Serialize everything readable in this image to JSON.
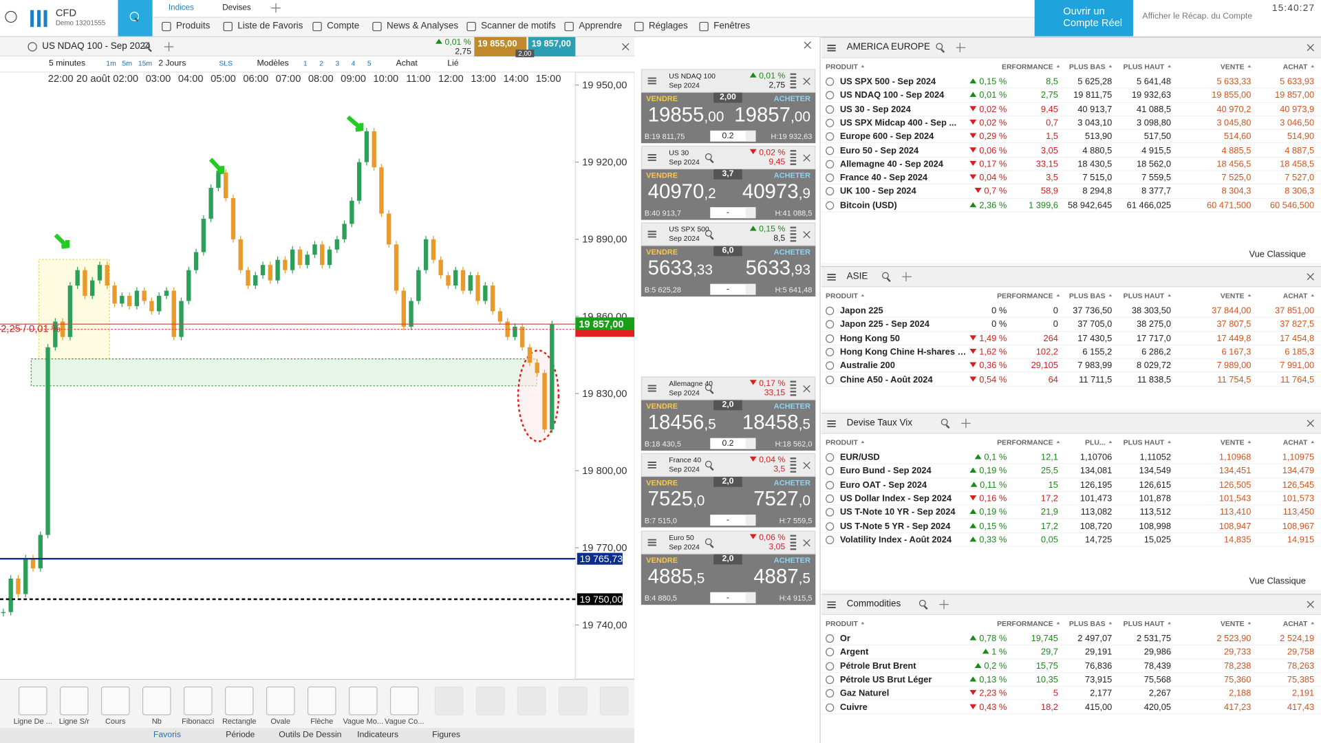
{
  "header": {
    "brand": "CFD",
    "account": "Demo 13201555",
    "tabs": [
      "Indices",
      "Devises"
    ],
    "menu": [
      "Produits",
      "Liste de Favoris",
      "Compte",
      "News & Analyses",
      "Scanner de motifs",
      "Apprendre",
      "Réglages",
      "Fenêtres"
    ],
    "open_account": "Ouvrir un Compte Réel",
    "summary": "Afficher le Récap. du Compte",
    "clock": "15:40:27"
  },
  "chart_panel": {
    "instrument": "US NDAQ 100 - Sep 2024",
    "change": "0,01 %",
    "points": "2,75",
    "sell": "19 855,00",
    "buy": "19 857,00",
    "spread": "2,00",
    "toolbar": [
      "5 minutes",
      "1m",
      "5m",
      "15m",
      "2 Jours",
      "SLS",
      "Modèles",
      "1",
      "2",
      "3",
      "4",
      "5",
      "Achat",
      "Lié"
    ],
    "tools": [
      "Ligne De ...",
      "Ligne S/r",
      "Cours",
      "Nb",
      "Fibonacci",
      "Rectangle",
      "Ovale",
      "Flèche",
      "Vague Mo...",
      "Vague Co..."
    ],
    "tabs": [
      "Favoris",
      "Période",
      "Outils De Dessin",
      "Indicateurs",
      "Figures"
    ],
    "spread_label": "2,25 / 0,01 %"
  },
  "chart_data": {
    "type": "candlestick",
    "time_labels": [
      "22:00",
      "20 août",
      "02:00",
      "03:00",
      "04:00",
      "05:00",
      "06:00",
      "07:00",
      "08:00",
      "09:00",
      "10:00",
      "11:00",
      "12:00",
      "13:00",
      "14:00",
      "15:00"
    ],
    "values": [
      19745,
      19758,
      19752,
      19766,
      19762,
      19775,
      19848,
      19858,
      19852,
      19872,
      19878,
      19868,
      19874,
      19880,
      19872,
      19865,
      19868,
      19864,
      19870,
      19866,
      19862,
      19868,
      19870,
      19852,
      19866,
      19878,
      19885,
      19898,
      19910,
      19916,
      19906,
      19890,
      19878,
      19872,
      19876,
      19880,
      19874,
      19882,
      19878,
      19886,
      19880,
      19884,
      19888,
      19880,
      19886,
      19890,
      19896,
      19905,
      19920,
      19932,
      19918,
      19900,
      19888,
      19870,
      19856,
      19866,
      19878,
      19890,
      19882,
      19876,
      19872,
      19878,
      19870,
      19876,
      19866,
      19872,
      19862,
      19858,
      19852,
      19856,
      19848,
      19842,
      19838,
      19816,
      19857
    ],
    "colors": {
      "up": "#2ca05a",
      "down": "#e89a2c"
    },
    "ylim": [
      19719.3,
      19950.3
    ],
    "yticks": [
      {
        "value": 19950,
        "label": "19 950,00"
      },
      {
        "value": 19920,
        "label": "19 920,00"
      },
      {
        "value": 19890,
        "label": "19 890,00"
      },
      {
        "value": 19860,
        "label": "19 860,00"
      },
      {
        "value": 19830,
        "label": "19 830,00"
      },
      {
        "value": 19800,
        "label": "19 800,00"
      },
      {
        "value": 19770,
        "label": "19 770,00"
      },
      {
        "value": 19740,
        "label": "19 740,00"
      }
    ],
    "bid": 19855,
    "current": {
      "value": 19857,
      "label": "19 857,00"
    },
    "levels": [
      {
        "value": 19765.73,
        "label": "19 765,73",
        "color": "#0b2d8f"
      },
      {
        "value": 19750,
        "label": "19 750,00",
        "color": "#000000"
      }
    ]
  },
  "quotes": {
    "sell_label": "VENDRE",
    "buy_label": "ACHETER",
    "tiles": [
      {
        "name": "US NDAQ 100",
        "expiry": "Sep 2024",
        "change": "0,01 %",
        "dir": "up",
        "points": "2,75",
        "spread": "2,00",
        "sell": [
          "19855",
          ",00"
        ],
        "buy": [
          "19857",
          ",00"
        ],
        "low": "B:19 811,75",
        "qty": "0.2",
        "high": "H:19 932,63"
      },
      {
        "name": "US 30",
        "expiry": "Sep 2024",
        "change": "0,02 %",
        "dir": "down",
        "points": "9,45",
        "spread": "3,7",
        "sell": [
          "40970",
          ",2"
        ],
        "buy": [
          "40973",
          ",9"
        ],
        "low": "B:40 913,7",
        "qty": "-",
        "high": "H:41 088,5"
      },
      {
        "name": "US SPX 500",
        "expiry": "Sep 2024",
        "change": "0,15 %",
        "dir": "up",
        "points": "8,5",
        "spread": "6,0",
        "sell": [
          "5633",
          ",33"
        ],
        "buy": [
          "5633",
          ",93"
        ],
        "low": "B:5 625,28",
        "qty": "-",
        "high": "H:5 641,48"
      },
      {
        "name": "Allemagne 40",
        "expiry": "Sep 2024",
        "change": "0,17 %",
        "dir": "down",
        "points": "33,15",
        "spread": "2,0",
        "sell": [
          "18456",
          ",5"
        ],
        "buy": [
          "18458",
          ",5"
        ],
        "low": "B:18 430,5",
        "qty": "0.2",
        "high": "H:18 562,0"
      },
      {
        "name": "France 40",
        "expiry": "Sep 2024",
        "change": "0,04 %",
        "dir": "down",
        "points": "3,5",
        "spread": "2,0",
        "sell": [
          "7525",
          ",0"
        ],
        "buy": [
          "7527",
          ",0"
        ],
        "low": "B:7 515,0",
        "qty": "-",
        "high": "H:7 559,5"
      },
      {
        "name": "Euro 50",
        "expiry": "Sep 2024",
        "change": "0,06 %",
        "dir": "down",
        "points": "3,05",
        "spread": "2,0",
        "sell": [
          "4885",
          ",5"
        ],
        "buy": [
          "4887",
          ",5"
        ],
        "low": "B:4 880,5",
        "qty": "-",
        "high": "H:4 915,5"
      }
    ]
  },
  "panels": [
    {
      "title": "AMERICA EUROPE",
      "columns": [
        "PRODUIT",
        "ERFORMANCE",
        "PLUS BAS",
        "PLUS HAUT",
        "VENTE",
        "ACHAT"
      ],
      "footer": "Vue Classique",
      "dirs": [
        "up",
        "up",
        "down",
        "down",
        "down",
        "down",
        "down",
        "down",
        "down",
        "up"
      ],
      "rows": [
        [
          "US SPX 500 - Sep 2024",
          "0,15 %",
          "8,5",
          "5 625,28",
          "5 641,48",
          "5 633,33",
          "5 633,93"
        ],
        [
          "US NDAQ 100 - Sep 2024",
          "0,01 %",
          "2,75",
          "19 811,75",
          "19 932,63",
          "19 855,00",
          "19 857,00"
        ],
        [
          "US 30 - Sep 2024",
          "0,02 %",
          "9,45",
          "40 913,7",
          "41 088,5",
          "40 970,2",
          "40 973,9"
        ],
        [
          "US SPX Midcap 400 - Sep ...",
          "0,02 %",
          "0,7",
          "3 043,10",
          "3 098,80",
          "3 045,80",
          "3 046,50"
        ],
        [
          "Europe 600 - Sep 2024",
          "0,29 %",
          "1,5",
          "513,90",
          "517,50",
          "514,60",
          "514,90"
        ],
        [
          "Euro 50 - Sep 2024",
          "0,06 %",
          "3,05",
          "4 880,5",
          "4 915,5",
          "4 885,5",
          "4 887,5"
        ],
        [
          "Allemagne 40 - Sep 2024",
          "0,17 %",
          "33,15",
          "18 430,5",
          "18 562,0",
          "18 456,5",
          "18 458,5"
        ],
        [
          "France 40 - Sep 2024",
          "0,04 %",
          "3,5",
          "7 515,0",
          "7 559,5",
          "7 525,0",
          "7 527,0"
        ],
        [
          "UK 100 - Sep 2024",
          "0,7 %",
          "58,9",
          "8 294,8",
          "8 377,7",
          "8 304,3",
          "8 306,3"
        ],
        [
          "Bitcoin (USD)",
          "2,36 %",
          "1 399,6",
          "58 942,645",
          "61 466,025",
          "60 471,500",
          "60 546,500"
        ]
      ]
    },
    {
      "title": "ASIE",
      "columns": [
        "PRODUIT",
        "PERFORMANCE",
        "PLUS BAS",
        "PLUS HAUT",
        "VENTE",
        "ACHAT"
      ],
      "dirs": [
        "none",
        "none",
        "down",
        "down",
        "down",
        "down"
      ],
      "rows": [
        [
          "Japon 225",
          "0 %",
          "0",
          "37 736,50",
          "38 303,50",
          "37 844,00",
          "37 851,00"
        ],
        [
          "Japon 225 - Sep 2024",
          "0 %",
          "0",
          "37 705,0",
          "38 275,0",
          "37 807,5",
          "37 827,5"
        ],
        [
          "Hong Kong 50",
          "1,49 %",
          "264",
          "17 430,5",
          "17 717,0",
          "17 449,8",
          "17 454,8"
        ],
        [
          "Hong Kong Chine H-shares -...",
          "1,62 %",
          "102,2",
          "6 155,2",
          "6 286,2",
          "6 167,3",
          "6 185,3"
        ],
        [
          "Australie 200",
          "0,36 %",
          "29,105",
          "7 983,99",
          "8 029,72",
          "7 989,00",
          "7 991,00"
        ],
        [
          "Chine A50 - Août 2024",
          "0,54 %",
          "64",
          "11 711,5",
          "11 838,5",
          "11 754,5",
          "11 764,5"
        ]
      ]
    },
    {
      "title": "Devise Taux Vix",
      "columns": [
        "PRODUIT",
        "PERFORMANCE",
        "PLU...",
        "PLUS HAUT",
        "VENTE",
        "ACHAT"
      ],
      "footer": "Vue Classique",
      "dirs": [
        "up",
        "up",
        "up",
        "down",
        "up",
        "up",
        "up"
      ],
      "rows": [
        [
          "EUR/USD",
          "0,1 %",
          "12,1",
          "1,10706",
          "1,11052",
          "1,10968",
          "1,10975"
        ],
        [
          "Euro Bund - Sep 2024",
          "0,19 %",
          "25,5",
          "134,081",
          "134,549",
          "134,451",
          "134,479"
        ],
        [
          "Euro OAT - Sep 2024",
          "0,11 %",
          "15",
          "126,195",
          "126,615",
          "126,505",
          "126,545"
        ],
        [
          "US Dollar Index - Sep 2024",
          "0,16 %",
          "17,2",
          "101,473",
          "101,878",
          "101,543",
          "101,573"
        ],
        [
          "US T-Note 10 YR - Sep 2024",
          "0,19 %",
          "21,9",
          "113,082",
          "113,512",
          "113,410",
          "113,450"
        ],
        [
          "US T-Note 5 YR - Sep 2024",
          "0,15 %",
          "17,2",
          "108,720",
          "108,998",
          "108,947",
          "108,967"
        ],
        [
          "Volatility Index - Août 2024",
          "0,33 %",
          "0,05",
          "14,725",
          "15,025",
          "14,835",
          "14,915"
        ]
      ]
    },
    {
      "title": "Commodities",
      "columns": [
        "PRODUIT",
        "PERFORMANCE",
        "PLUS BAS",
        "PLUS HAUT",
        "VENTE",
        "ACHAT"
      ],
      "dirs": [
        "up",
        "up",
        "up",
        "up",
        "down",
        "down"
      ],
      "rows": [
        [
          "Or",
          "0,78 %",
          "19,745",
          "2 497,07",
          "2 531,75",
          "2 523,90",
          "2 524,19"
        ],
        [
          "Argent",
          "1 %",
          "29,7",
          "29,191",
          "29,986",
          "29,733",
          "29,758"
        ],
        [
          "Pétrole Brut Brent",
          "0,2 %",
          "15,75",
          "76,836",
          "78,439",
          "78,238",
          "78,263"
        ],
        [
          "Pétrole US Brut Léger",
          "0,13 %",
          "10,35",
          "73,915",
          "75,568",
          "75,360",
          "75,385"
        ],
        [
          "Gaz Naturel",
          "2,23 %",
          "5",
          "2,177",
          "2,267",
          "2,188",
          "2,191"
        ],
        [
          "Cuivre",
          "0,43 %",
          "18,2",
          "415,00",
          "420,05",
          "417,23",
          "417,43"
        ]
      ]
    }
  ]
}
